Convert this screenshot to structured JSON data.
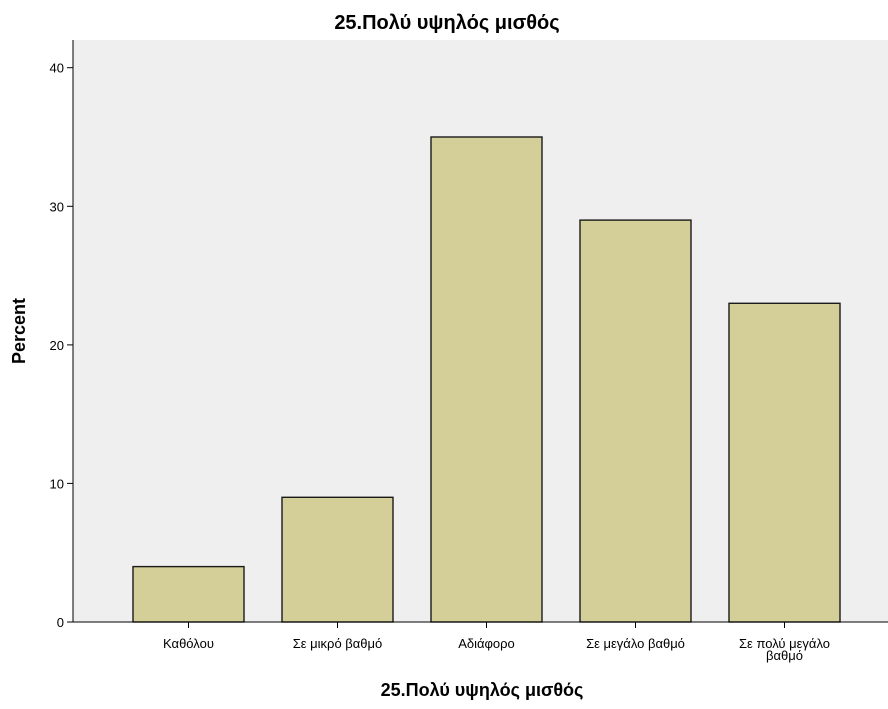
{
  "chart_data": {
    "type": "bar",
    "title": "25.Πολύ υψηλός μισθός",
    "xlabel": "25.Πολύ υψηλός μισθός",
    "ylabel": "Percent",
    "categories": [
      "Καθόλου",
      "Σε μικρό βαθμό",
      "Αδιάφορο",
      "Σε μεγάλο βαθμό",
      "Σε πολύ μεγάλο βαθμό"
    ],
    "category_lines": [
      [
        "Καθόλου"
      ],
      [
        "Σε μικρό βαθμό"
      ],
      [
        "Αδιάφορο"
      ],
      [
        "Σε μεγάλο βαθμό"
      ],
      [
        "Σε πολύ μεγάλο",
        "βαθμό"
      ]
    ],
    "values": [
      4,
      9,
      35,
      29,
      23
    ],
    "ylim": [
      0,
      42
    ],
    "yticks": [
      "0",
      "10",
      "20",
      "30",
      "40"
    ],
    "grid": false,
    "legend": "none",
    "colors": {
      "bar_fill": "#d4ce98",
      "bar_stroke": "#1a1a1a",
      "plot_background": "#efefef",
      "axis": "#000000"
    }
  }
}
